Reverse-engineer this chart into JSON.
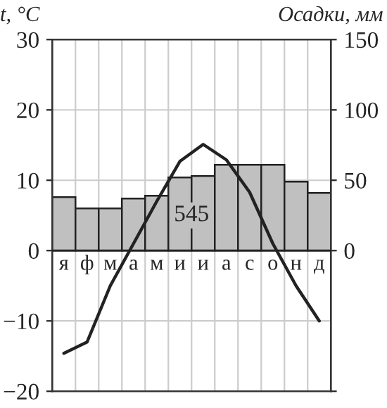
{
  "chart_data": {
    "type": "line",
    "categories": [
      "я",
      "ф",
      "м",
      "а",
      "м",
      "и",
      "и",
      "а",
      "с",
      "о",
      "н",
      "д"
    ],
    "ylabel": "t, °C",
    "y2label": "Осадки, мм",
    "ylim": [
      -20,
      30
    ],
    "yticks": [
      -20,
      -10,
      0,
      10,
      20,
      30
    ],
    "y2lim": [
      -100,
      150
    ],
    "y2ticks": [
      {
        "value": -100,
        "label": null
      },
      0,
      50,
      100,
      150
    ],
    "grid": true,
    "legend": false,
    "series": [
      {
        "type": "bar",
        "axis": "y2",
        "color": "#c0c0c0",
        "values": [
          38,
          30,
          30,
          37,
          39,
          52,
          53,
          61,
          61,
          61,
          49,
          41
        ]
      },
      {
        "axis": "y",
        "color": "#222222",
        "values": [
          -14.6,
          -13,
          -5,
          1,
          7,
          12.7,
          15.1,
          12.9,
          8.3,
          1,
          -5,
          -10
        ]
      }
    ],
    "annotations": [
      "545"
    ]
  }
}
